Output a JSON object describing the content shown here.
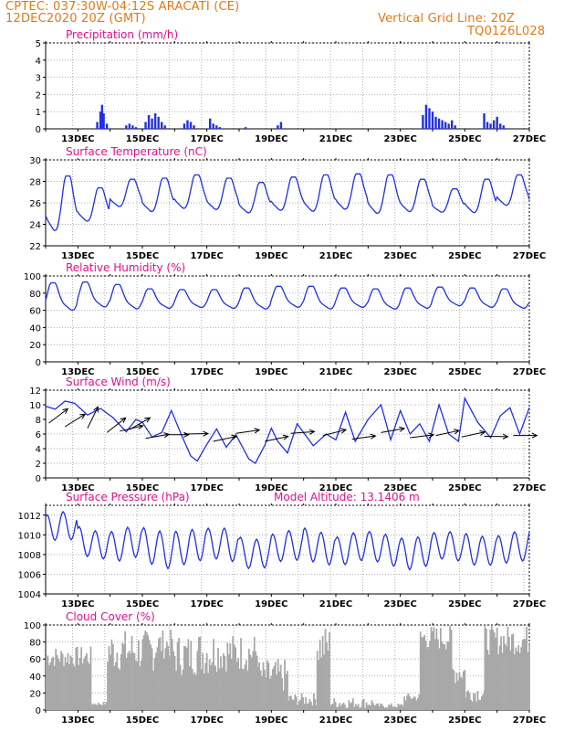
{
  "header": {
    "line1_left": "CPTEC:   037:30W-04:12S   ARACATI (CE)",
    "line2_left": "12DEC2020 20Z (GMT)",
    "line1_right": "Vertical Grid Line: 20Z",
    "line2_right": "TQ0126L028"
  },
  "colors": {
    "header": "#e07a14",
    "title": "#e0108c",
    "line": "#2230e0",
    "bar": "#2230e0",
    "cloud": "#a8a8a8",
    "axis": "#000000"
  },
  "x_tick_labels": [
    "13DEC",
    "15DEC",
    "17DEC",
    "19DEC",
    "21DEC",
    "23DEC",
    "25DEC",
    "27DEC"
  ],
  "chart_data": [
    {
      "type": "bar",
      "title": "Precipitation (mm/h)",
      "ylim": [
        0,
        5
      ],
      "yticks": [
        "0",
        "1",
        "2",
        "3",
        "4",
        "5"
      ],
      "x_days": [
        13.6,
        13.7,
        13.75,
        13.8,
        13.9,
        14.5,
        14.6,
        14.7,
        14.8,
        15.1,
        15.2,
        15.3,
        15.4,
        15.5,
        15.6,
        15.7,
        16.3,
        16.4,
        16.5,
        16.6,
        17.1,
        17.2,
        17.3,
        17.4,
        18.2,
        19.2,
        19.3,
        23.7,
        23.8,
        23.9,
        24.0,
        24.1,
        24.2,
        24.3,
        24.4,
        24.5,
        24.6,
        24.7,
        25.6,
        25.7,
        25.8,
        25.9,
        26.0,
        26.1,
        26.2
      ],
      "values": [
        0.4,
        1.0,
        1.4,
        0.9,
        0.3,
        0.2,
        0.3,
        0.2,
        0.1,
        0.4,
        0.8,
        0.6,
        0.9,
        0.7,
        0.4,
        0.2,
        0.3,
        0.5,
        0.4,
        0.2,
        0.6,
        0.3,
        0.2,
        0.1,
        0.1,
        0.2,
        0.4,
        0.8,
        1.4,
        1.2,
        1.0,
        0.7,
        0.6,
        0.5,
        0.4,
        0.3,
        0.5,
        0.2,
        0.9,
        0.4,
        0.3,
        0.5,
        0.7,
        0.3,
        0.2
      ]
    },
    {
      "type": "line",
      "title": "Surface Temperature (nC)",
      "ylim": [
        22,
        30
      ],
      "yticks": [
        "22",
        "24",
        "26",
        "28",
        "30"
      ],
      "x_start_day": 12.0,
      "step_hours": 1,
      "diurnal": {
        "min": [
          23.1,
          24.1,
          25.5,
          25.0,
          25.3,
          25.2,
          24.9,
          25.1,
          25.0,
          25.2,
          24.8,
          25.0,
          25.0,
          24.9,
          25.6,
          25.2
        ],
        "max": [
          28.5,
          27.4,
          28.2,
          28.3,
          28.6,
          28.3,
          27.9,
          28.4,
          28.6,
          28.7,
          28.6,
          28.2,
          27.3,
          28.2,
          28.6,
          28.7
        ],
        "peak_hour": 17,
        "min_hour": 6
      }
    },
    {
      "type": "line",
      "title": "Relative Humidity (%)",
      "ylim": [
        0,
        100
      ],
      "yticks": [
        "0",
        "20",
        "40",
        "60",
        "80",
        "100"
      ],
      "x_start_day": 12.0,
      "step_hours": 1,
      "diurnal": {
        "max": [
          92,
          93,
          90,
          85,
          84,
          84,
          86,
          88,
          88,
          86,
          85,
          86,
          87,
          86,
          85,
          82
        ],
        "min": [
          58,
          62,
          60,
          61,
          62,
          61,
          60,
          62,
          60,
          62,
          60,
          61,
          64,
          62,
          61,
          60
        ],
        "peak_hour": 6,
        "min_hour": 17
      }
    },
    {
      "type": "line",
      "title": "Surface Wind (m/s)",
      "ylim": [
        0,
        12
      ],
      "yticks": [
        "0",
        "2",
        "4",
        "6",
        "8",
        "10",
        "12"
      ],
      "speed_points": [
        [
          12.0,
          9.8
        ],
        [
          12.3,
          9.4
        ],
        [
          12.6,
          10.5
        ],
        [
          12.9,
          10.2
        ],
        [
          13.3,
          8.6
        ],
        [
          13.7,
          9.5
        ],
        [
          14.1,
          8.2
        ],
        [
          14.5,
          6.3
        ],
        [
          14.8,
          8.0
        ],
        [
          15.0,
          7.6
        ],
        [
          15.3,
          5.6
        ],
        [
          15.6,
          6.2
        ],
        [
          15.9,
          9.2
        ],
        [
          16.2,
          6.0
        ],
        [
          16.5,
          3.0
        ],
        [
          16.7,
          2.3
        ],
        [
          17.0,
          4.6
        ],
        [
          17.3,
          6.7
        ],
        [
          17.6,
          4.2
        ],
        [
          17.9,
          5.9
        ],
        [
          18.3,
          2.6
        ],
        [
          18.5,
          2.0
        ],
        [
          18.8,
          4.5
        ],
        [
          19.0,
          6.8
        ],
        [
          19.2,
          5.0
        ],
        [
          19.5,
          3.4
        ],
        [
          19.8,
          7.4
        ],
        [
          20.1,
          5.6
        ],
        [
          20.3,
          4.4
        ],
        [
          20.7,
          6.0
        ],
        [
          21.0,
          5.2
        ],
        [
          21.3,
          9.0
        ],
        [
          21.6,
          5.0
        ],
        [
          22.0,
          8.0
        ],
        [
          22.4,
          10.0
        ],
        [
          22.7,
          5.2
        ],
        [
          23.0,
          9.2
        ],
        [
          23.3,
          6.0
        ],
        [
          23.6,
          7.4
        ],
        [
          23.9,
          5.0
        ],
        [
          24.2,
          10.0
        ],
        [
          24.5,
          6.0
        ],
        [
          24.8,
          5.0
        ],
        [
          25.0,
          10.9
        ],
        [
          25.4,
          7.6
        ],
        [
          25.8,
          5.5
        ],
        [
          26.1,
          8.5
        ],
        [
          26.4,
          9.6
        ],
        [
          26.7,
          6.0
        ],
        [
          27.0,
          9.6
        ]
      ],
      "arrows": [
        [
          12.1,
          7.5,
          233
        ],
        [
          12.6,
          7.0,
          238
        ],
        [
          13.3,
          6.8,
          206
        ],
        [
          13.9,
          6.2,
          232
        ],
        [
          14.3,
          6.4,
          257
        ],
        [
          14.6,
          6.6,
          240
        ],
        [
          15.1,
          5.4,
          260
        ],
        [
          15.7,
          5.9,
          270
        ],
        [
          16.3,
          6.0,
          269
        ],
        [
          17.2,
          5.0,
          258
        ],
        [
          17.9,
          6.1,
          262
        ],
        [
          18.8,
          5.0,
          258
        ],
        [
          19.6,
          6.1,
          266
        ],
        [
          20.6,
          5.8,
          256
        ],
        [
          21.5,
          5.3,
          262
        ],
        [
          22.4,
          6.2,
          260
        ],
        [
          23.3,
          5.5,
          263
        ],
        [
          24.1,
          5.8,
          258
        ],
        [
          24.9,
          5.6,
          258
        ],
        [
          25.6,
          5.7,
          271
        ],
        [
          26.5,
          5.8,
          270
        ]
      ]
    },
    {
      "type": "line",
      "title": "Surface Pressure (hPa)",
      "annotation": "Model Altitude: 13.1406 m",
      "ylim": [
        1004,
        1013
      ],
      "yticks": [
        "1004",
        "1006",
        "1008",
        "1010",
        "1012"
      ],
      "x_start_day": 12.0,
      "step_hours": 1,
      "semidiurnal": {
        "base": [
          1010.6,
          1009.3,
          1009.0,
          1008.6,
          1009.0,
          1008.8,
          1008.4,
          1008.6,
          1008.9,
          1008.6,
          1008.5,
          1008.4,
          1008.6,
          1008.7,
          1008.5,
          1008.6
        ],
        "amp": [
          1.4,
          1.4,
          1.6,
          1.8,
          1.7,
          1.6,
          1.5,
          1.5,
          1.6,
          1.5,
          1.5,
          1.6,
          1.4,
          1.5,
          1.5,
          1.6
        ]
      }
    },
    {
      "type": "area",
      "title": "Cloud Cover (%)",
      "ylim": [
        0,
        100
      ],
      "yticks": [
        "0",
        "20",
        "40",
        "60",
        "80",
        "100"
      ],
      "x_start_day": 12.0,
      "step_hours": 1,
      "segments": [
        [
          12.0,
          13.4,
          50,
          75
        ],
        [
          13.4,
          13.9,
          5,
          10
        ],
        [
          13.9,
          15.4,
          45,
          95
        ],
        [
          15.4,
          15.9,
          60,
          95
        ],
        [
          15.9,
          16.6,
          40,
          90
        ],
        [
          16.6,
          17.2,
          40,
          95
        ],
        [
          17.2,
          18.6,
          45,
          90
        ],
        [
          18.6,
          19.5,
          20,
          60
        ],
        [
          19.5,
          20.4,
          5,
          20
        ],
        [
          20.4,
          20.8,
          50,
          100
        ],
        [
          20.8,
          22.2,
          2,
          15
        ],
        [
          22.2,
          23.1,
          2,
          8
        ],
        [
          23.1,
          23.6,
          10,
          20
        ],
        [
          23.6,
          24.6,
          70,
          100
        ],
        [
          24.6,
          25.0,
          30,
          60
        ],
        [
          25.0,
          25.6,
          10,
          30
        ],
        [
          25.6,
          27.0,
          65,
          100
        ]
      ]
    }
  ]
}
